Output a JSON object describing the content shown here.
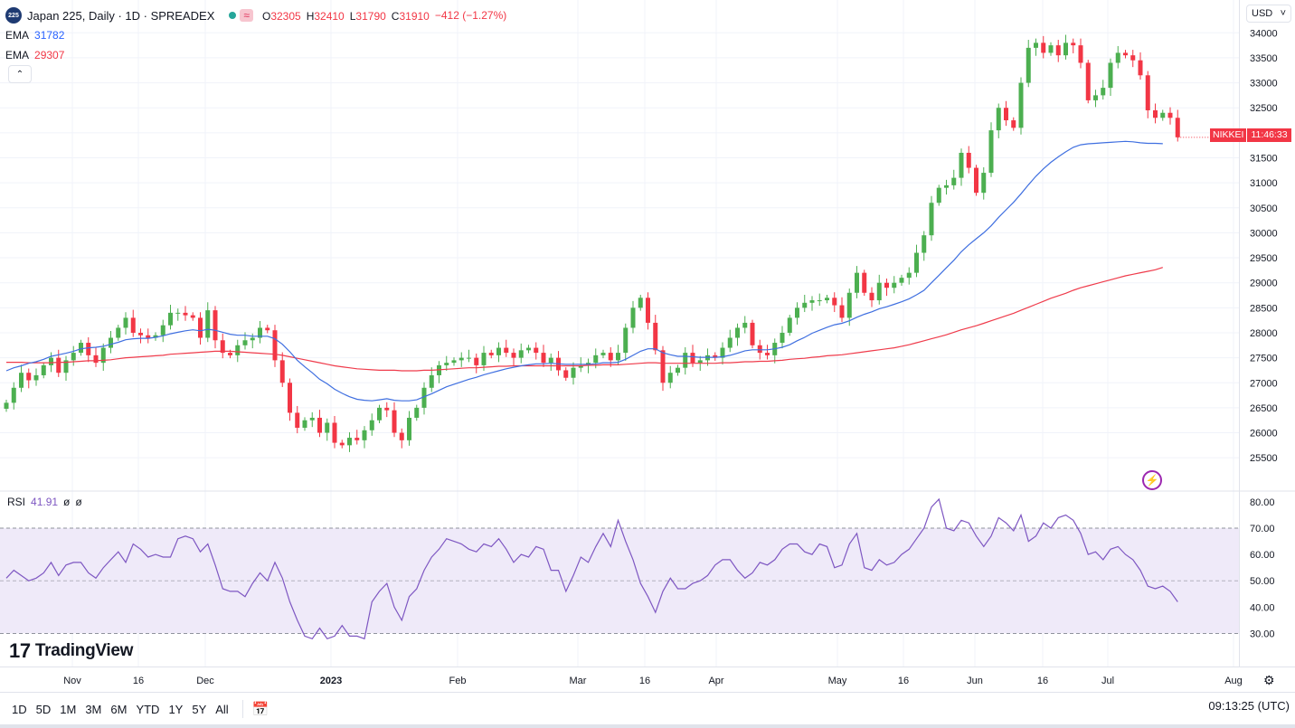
{
  "header": {
    "symbol_badge": "225",
    "title": "Japan 225, Daily · 1D · SPREADEX",
    "ohlc": [
      {
        "k": "O",
        "v": "32305"
      },
      {
        "k": "H",
        "v": "32410"
      },
      {
        "k": "L",
        "v": "31790"
      },
      {
        "k": "C",
        "v": "31910"
      }
    ],
    "change": "−412 (−1.27%)",
    "chip_wave": "≈"
  },
  "indicators": [
    {
      "label": "EMA",
      "value": "31782",
      "color": "#2962ff"
    },
    {
      "label": "EMA",
      "value": "29307",
      "color": "#f23645"
    }
  ],
  "rsi": {
    "label": "RSI",
    "value": "41.91",
    "extra1": "ø",
    "extra2": "ø",
    "color": "#7e57c2"
  },
  "currency": {
    "label": "USD",
    "chevron": "˅"
  },
  "price_tag": {
    "symbol": "NIKKEI",
    "countdown": "11:46:33"
  },
  "watermark": {
    "text": "TradingView",
    "logo": "17"
  },
  "ranges": [
    "1D",
    "5D",
    "1M",
    "3M",
    "6M",
    "YTD",
    "1Y",
    "5Y",
    "All"
  ],
  "clock": "09:13:25 (UTC)",
  "colors": {
    "up": "#26a69a",
    "up_candle": "#4caf50",
    "down": "#f23645",
    "ema_fast": "#3f6fe0",
    "ema_slow": "#ef3b4b",
    "rsi": "#7e57c2",
    "rsi_band": "#efeaf9",
    "grid": "#f0f3fa"
  },
  "chart_data": [
    {
      "type": "candlestick",
      "title": "Japan 225, Daily · 1D · SPREADEX",
      "x_ticks": [
        "Nov",
        "16",
        "Dec",
        "2023",
        "Feb",
        "Mar",
        "16",
        "Apr",
        "May",
        "16",
        "Jun",
        "16",
        "Jul",
        "Aug"
      ],
      "ylim": [
        25250,
        34150
      ],
      "y_ticks": [
        "34000",
        "33500",
        "33000",
        "32500",
        "32000",
        "31500",
        "31000",
        "30500",
        "30000",
        "29500",
        "29000",
        "28500",
        "28000",
        "27500",
        "27000",
        "26500",
        "26000",
        "25500"
      ],
      "close_series": [
        26600,
        26900,
        27200,
        27050,
        27150,
        27350,
        27500,
        27200,
        27450,
        27600,
        27800,
        27550,
        27400,
        27700,
        27900,
        28100,
        28300,
        28000,
        27950,
        27900,
        27950,
        28150,
        28400,
        28400,
        28350,
        28300,
        27900,
        28450,
        27850,
        27600,
        27550,
        27750,
        27850,
        27900,
        28100,
        28050,
        27450,
        27000,
        26400,
        26100,
        26250,
        26300,
        26000,
        26200,
        25800,
        25750,
        25900,
        25850,
        26050,
        26250,
        26500,
        26450,
        26000,
        25850,
        26300,
        26500,
        26900,
        27150,
        27350,
        27400,
        27450,
        27500,
        27500,
        27350,
        27600,
        27550,
        27700,
        27600,
        27500,
        27650,
        27700,
        27600,
        27400,
        27500,
        27250,
        27100,
        27300,
        27350,
        27400,
        27550,
        27600,
        27450,
        27600,
        28100,
        28500,
        28700,
        28200,
        27650,
        27000,
        27200,
        27300,
        27600,
        27400,
        27450,
        27550,
        27500,
        27700,
        27900,
        28100,
        28200,
        27750,
        27600,
        27550,
        27800,
        28000,
        28300,
        28500,
        28600,
        28650,
        28650,
        28700,
        28550,
        28300,
        28800,
        29200,
        28800,
        28650,
        29000,
        28900,
        29000,
        29100,
        29200,
        29600,
        29950,
        30600,
        30900,
        30950,
        31100,
        31600,
        31300,
        30800,
        31200,
        32050,
        32500,
        32250,
        32100,
        33000,
        33700,
        33800,
        33600,
        33750,
        33550,
        33800,
        33750,
        33400,
        32650,
        32750,
        32900,
        33400,
        33600,
        33550,
        33450,
        33150,
        32450,
        32300,
        32400,
        32300,
        31910
      ],
      "ema_fast": [
        27240,
        27300,
        27340,
        27390,
        27420,
        27470,
        27530,
        27560,
        27590,
        27630,
        27680,
        27700,
        27710,
        27730,
        27770,
        27810,
        27860,
        27880,
        27890,
        27890,
        27910,
        27940,
        27980,
        28010,
        28040,
        28060,
        28040,
        28070,
        28050,
        28010,
        27970,
        27950,
        27950,
        27930,
        27930,
        27930,
        27880,
        27770,
        27620,
        27450,
        27320,
        27200,
        27070,
        26980,
        26870,
        26790,
        26720,
        26670,
        26650,
        26640,
        26660,
        26680,
        26650,
        26640,
        26640,
        26660,
        26720,
        26780,
        26850,
        26920,
        26970,
        27020,
        27070,
        27110,
        27160,
        27200,
        27240,
        27280,
        27310,
        27340,
        27360,
        27380,
        27380,
        27390,
        27380,
        27370,
        27370,
        27370,
        27370,
        27380,
        27400,
        27400,
        27410,
        27470,
        27550,
        27630,
        27680,
        27680,
        27600,
        27560,
        27530,
        27530,
        27520,
        27510,
        27510,
        27510,
        27520,
        27550,
        27590,
        27640,
        27660,
        27660,
        27660,
        27680,
        27710,
        27760,
        27840,
        27910,
        27990,
        28050,
        28110,
        28160,
        28190,
        28240,
        28310,
        28370,
        28420,
        28480,
        28520,
        28570,
        28620,
        28680,
        28760,
        28850,
        29000,
        29150,
        29300,
        29450,
        29620,
        29760,
        29880,
        30000,
        30140,
        30310,
        30460,
        30610,
        30780,
        30960,
        31130,
        31280,
        31410,
        31520,
        31620,
        31710,
        31760,
        31780,
        31790,
        31800,
        31810,
        31820,
        31830,
        31820,
        31800,
        31790,
        31790,
        31782
      ],
      "ema_slow": [
        27410,
        27410,
        27410,
        27400,
        27400,
        27400,
        27400,
        27410,
        27410,
        27420,
        27430,
        27440,
        27440,
        27450,
        27460,
        27480,
        27500,
        27510,
        27520,
        27530,
        27540,
        27550,
        27570,
        27580,
        27590,
        27600,
        27610,
        27620,
        27630,
        27630,
        27630,
        27620,
        27610,
        27600,
        27590,
        27580,
        27570,
        27550,
        27520,
        27490,
        27460,
        27430,
        27400,
        27370,
        27340,
        27320,
        27300,
        27280,
        27270,
        27260,
        27250,
        27250,
        27250,
        27240,
        27240,
        27240,
        27250,
        27250,
        27260,
        27270,
        27280,
        27290,
        27300,
        27300,
        27310,
        27320,
        27330,
        27330,
        27340,
        27340,
        27340,
        27340,
        27340,
        27340,
        27340,
        27340,
        27340,
        27340,
        27350,
        27350,
        27360,
        27360,
        27360,
        27370,
        27380,
        27390,
        27400,
        27400,
        27390,
        27390,
        27390,
        27390,
        27390,
        27390,
        27390,
        27390,
        27400,
        27400,
        27410,
        27420,
        27420,
        27430,
        27430,
        27440,
        27450,
        27470,
        27480,
        27490,
        27510,
        27520,
        27540,
        27550,
        27560,
        27580,
        27600,
        27620,
        27640,
        27660,
        27680,
        27700,
        27730,
        27760,
        27800,
        27840,
        27880,
        27920,
        27960,
        28010,
        28060,
        28100,
        28140,
        28190,
        28240,
        28290,
        28340,
        28390,
        28450,
        28510,
        28570,
        28630,
        28690,
        28740,
        28790,
        28850,
        28900,
        28940,
        28980,
        29020,
        29060,
        29100,
        29140,
        29170,
        29200,
        29230,
        29260,
        29307
      ]
    },
    {
      "type": "line",
      "title": "RSI",
      "ylim": [
        25,
        81
      ],
      "y_ticks": [
        "80.00",
        "70.00",
        "60.00",
        "50.00",
        "40.00",
        "30.00"
      ],
      "bands": {
        "upper": 70,
        "middle": 50,
        "lower": 30
      },
      "values": [
        51,
        54,
        52,
        50,
        51,
        53,
        57,
        52,
        56,
        57,
        57,
        53,
        51,
        55,
        58,
        61,
        57,
        64,
        62,
        59,
        60,
        59,
        59,
        66,
        67,
        66,
        61,
        64,
        56,
        47,
        46,
        46,
        44,
        49,
        53,
        50,
        57,
        51,
        42,
        35,
        29,
        28,
        32,
        28,
        29,
        33,
        29,
        29,
        28,
        42,
        46,
        49,
        40,
        35,
        44,
        47,
        54,
        59,
        62,
        66,
        65,
        64,
        62,
        61,
        64,
        63,
        66,
        62,
        57,
        60,
        59,
        63,
        62,
        54,
        54,
        46,
        52,
        59,
        57,
        63,
        68,
        63,
        73,
        65,
        58,
        49,
        44,
        38,
        46,
        51,
        47,
        47,
        49,
        50,
        52,
        56,
        58,
        58,
        54,
        51,
        53,
        57,
        56,
        58,
        62,
        64,
        64,
        61,
        60,
        64,
        63,
        55,
        56,
        64,
        68,
        55,
        54,
        58,
        56,
        57,
        60,
        62,
        66,
        70,
        78,
        81,
        70,
        69,
        73,
        72,
        67,
        63,
        67,
        74,
        72,
        69,
        75,
        65,
        67,
        72,
        70,
        74,
        75,
        73,
        68,
        60,
        61,
        58,
        62,
        63,
        60,
        58,
        54,
        48,
        47,
        48,
        46,
        42
      ]
    }
  ]
}
